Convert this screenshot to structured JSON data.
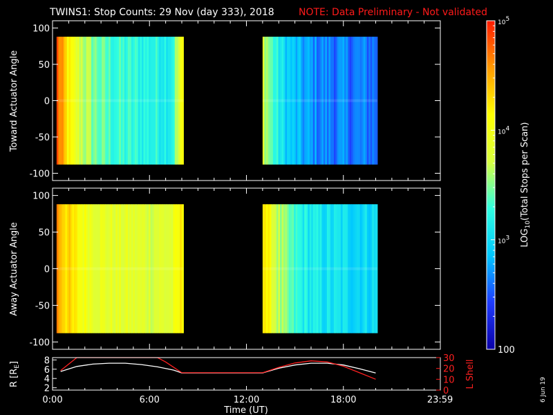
{
  "title": {
    "main": "TWINS1: Stop Counts: 29 Nov (day 333), 2018",
    "note": "NOTE: Data Preliminary - Not validated"
  },
  "colors": {
    "background": "#000000",
    "axes": "#ffffff",
    "note": "#ff1a1a",
    "r_line": "#ffffff",
    "lshell_line": "#ff2020"
  },
  "chart_data": [
    {
      "type": "heatmap",
      "name": "toward-panel",
      "ylabel": "Toward Actuator Angle",
      "ylim": [
        -110,
        110
      ],
      "yticks": [
        100,
        50,
        0,
        -50,
        -100
      ],
      "ytick_labels": [
        "100",
        "50",
        "0",
        "-50",
        "-100"
      ],
      "xlim": [
        0,
        24
      ],
      "data_blocks": [
        [
          0.25,
          8.1
        ],
        [
          13.0,
          20.1
        ]
      ],
      "angle_range": [
        -88,
        88
      ],
      "description_values": {
        "block1_level_log10": [
          4.8,
          3.2
        ],
        "block2_level_log10": [
          3.8,
          2.6
        ]
      }
    },
    {
      "type": "heatmap",
      "name": "away-panel",
      "ylabel": "Away Actuator Angle",
      "ylim": [
        -110,
        110
      ],
      "yticks": [
        100,
        50,
        0,
        -50,
        -100
      ],
      "ytick_labels": [
        "100",
        "50",
        "0",
        "-50",
        "-100"
      ],
      "xlim": [
        0,
        24
      ],
      "data_blocks": [
        [
          0.25,
          8.1
        ],
        [
          13.0,
          20.1
        ]
      ],
      "angle_range": [
        -88,
        88
      ],
      "description_values": {
        "block1_level_log10": [
          4.6,
          3.8
        ],
        "block2_level_log10": [
          4.4,
          3.0
        ]
      }
    },
    {
      "type": "line",
      "name": "orbit-panel",
      "xlabel": "Time (UT)",
      "xlim": [
        0,
        24
      ],
      "xticks": [
        0,
        6,
        12,
        18,
        23.983
      ],
      "xtick_labels": [
        "0:00",
        "6:00",
        "12:00",
        "18:00",
        "23:59"
      ],
      "left_axis": {
        "label": "R [R",
        "label_sub": "E",
        "label_close": "]",
        "ylim": [
          1.5,
          8.5
        ],
        "yticks": [
          2,
          4,
          6,
          8
        ],
        "ytick_labels": [
          "2",
          "4",
          "6",
          "8"
        ]
      },
      "right_axis": {
        "label": "L Shell",
        "ylim": [
          0,
          30
        ],
        "yticks": [
          0,
          10,
          20,
          30
        ],
        "ytick_labels": [
          "0",
          "10",
          "20",
          "30"
        ]
      },
      "series": [
        {
          "axis": "left",
          "x": [
            0.5,
            1.5,
            2.5,
            3.5,
            4.5,
            5.5,
            6.5,
            7.5,
            8.0,
            13.0,
            14.0,
            15.0,
            16.0,
            17.0,
            18.0,
            19.0,
            20.0
          ],
          "y": [
            5.5,
            6.6,
            7.1,
            7.3,
            7.3,
            7.0,
            6.5,
            5.8,
            5.2,
            5.2,
            6.2,
            6.9,
            7.3,
            7.3,
            6.9,
            6.1,
            5.2
          ]
        },
        {
          "axis": "right",
          "x": [
            0.5,
            1.0,
            1.5,
            2.0,
            6.0,
            6.5,
            7.0,
            7.5,
            8.0,
            13.0,
            14.0,
            15.0,
            16.0,
            17.0,
            18.0,
            19.0,
            20.0
          ],
          "y": [
            18,
            24,
            30,
            32,
            32,
            30,
            26,
            21,
            16,
            16,
            21,
            25,
            27,
            26,
            22,
            16,
            10
          ]
        }
      ]
    }
  ],
  "colorbar": {
    "label_prefix": "LOG",
    "label_sub": "10",
    "label_suffix": "(Total Stops per Scan)",
    "range_log10": [
      2,
      5
    ],
    "major_ticks": [
      {
        "value": 5,
        "base": "10",
        "exp": "5"
      },
      {
        "value": 4,
        "base": "10",
        "exp": "4"
      },
      {
        "value": 3,
        "base": "10",
        "exp": "3"
      },
      {
        "value": 2,
        "label": "100"
      }
    ],
    "stops": [
      "#0a00a8",
      "#1f3cff",
      "#00c8ff",
      "#30ffe0",
      "#d8ff40",
      "#ffff00",
      "#ff9a00",
      "#ff1a00"
    ]
  },
  "footer_date": "6 Jun 19"
}
